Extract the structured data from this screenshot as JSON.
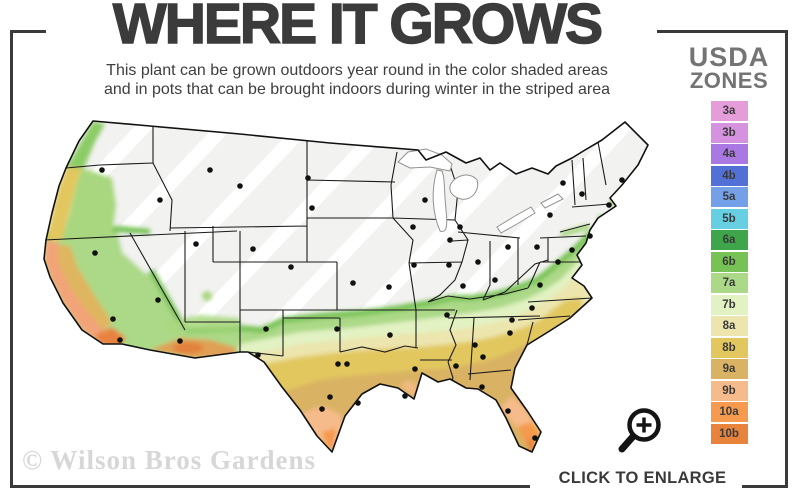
{
  "header": {
    "title": "WHERE IT GROWS",
    "subtitle_line1": "This plant can be grown outdoors year round in the color shaded areas",
    "subtitle_line2": "and in pots that can be brought indoors during winter in the striped area"
  },
  "legend": {
    "heading_line1": "USDA",
    "heading_line2": "ZONES",
    "zones": [
      {
        "label": "3a",
        "color": "#e49dd9"
      },
      {
        "label": "3b",
        "color": "#d592de"
      },
      {
        "label": "4a",
        "color": "#a978e2"
      },
      {
        "label": "4b",
        "color": "#5271d6"
      },
      {
        "label": "5a",
        "color": "#74a0e8"
      },
      {
        "label": "5b",
        "color": "#67cfe2"
      },
      {
        "label": "6a",
        "color": "#3fa54a"
      },
      {
        "label": "6b",
        "color": "#77c254"
      },
      {
        "label": "7a",
        "color": "#abd987"
      },
      {
        "label": "7b",
        "color": "#e2f2c3"
      },
      {
        "label": "8a",
        "color": "#ece5ad"
      },
      {
        "label": "8b",
        "color": "#e2c75e"
      },
      {
        "label": "9a",
        "color": "#d9b264"
      },
      {
        "label": "9b",
        "color": "#f6bb8a"
      },
      {
        "label": "10a",
        "color": "#f59a4e"
      },
      {
        "label": "10b",
        "color": "#e8833c"
      }
    ]
  },
  "map": {
    "colors": {
      "striped_fill": "#f2f2f0",
      "stripe": "#ffffff",
      "state_border": "#1b1b1b",
      "outline": "#111111",
      "lake_fill": "#ffffff",
      "lake_stroke": "#919191",
      "city_dot": "#111111",
      "ca_coast": "#f2a478",
      "ca_valley": "#dfb55f",
      "socal_hot": "#e8823f",
      "desert_hot": "#e0a055",
      "phoenix_core": "#e2823c",
      "nw_coast_green": "#8ccc66",
      "inland_green": "#a8d77f"
    },
    "city_dots": [
      [
        102,
        170
      ],
      [
        160,
        200
      ],
      [
        210,
        170
      ],
      [
        240,
        186
      ],
      [
        308,
        178
      ],
      [
        312,
        208
      ],
      [
        253,
        249
      ],
      [
        196,
        244
      ],
      [
        291,
        267
      ],
      [
        95,
        253
      ],
      [
        113,
        319
      ],
      [
        120,
        340
      ],
      [
        158,
        300
      ],
      [
        180,
        341
      ],
      [
        266,
        329
      ],
      [
        258,
        355
      ],
      [
        337,
        329
      ],
      [
        390,
        335
      ],
      [
        338,
        364
      ],
      [
        347,
        364
      ],
      [
        330,
        397
      ],
      [
        358,
        403
      ],
      [
        322,
        409
      ],
      [
        415,
        369
      ],
      [
        353,
        283
      ],
      [
        389,
        287
      ],
      [
        413,
        227
      ],
      [
        425,
        200
      ],
      [
        450,
        240
      ],
      [
        460,
        227
      ],
      [
        478,
        262
      ],
      [
        449,
        265
      ],
      [
        414,
        265
      ],
      [
        495,
        280
      ],
      [
        508,
        247
      ],
      [
        537,
        247
      ],
      [
        463,
        286
      ],
      [
        447,
        315
      ],
      [
        512,
        320
      ],
      [
        532,
        308
      ],
      [
        475,
        345
      ],
      [
        510,
        333
      ],
      [
        456,
        366
      ],
      [
        483,
        357
      ],
      [
        405,
        396
      ],
      [
        482,
        387
      ],
      [
        508,
        411
      ],
      [
        535,
        438
      ],
      [
        563,
        183
      ],
      [
        582,
        194
      ],
      [
        609,
        205
      ],
      [
        622,
        180
      ],
      [
        550,
        215
      ],
      [
        590,
        236
      ],
      [
        572,
        250
      ],
      [
        558,
        262
      ],
      [
        540,
        285
      ]
    ]
  },
  "footer": {
    "watermark": "© Wilson Bros Gardens",
    "enlarge_label": "CLICK TO ENLARGE"
  },
  "frame_color": "#3a3a3a"
}
